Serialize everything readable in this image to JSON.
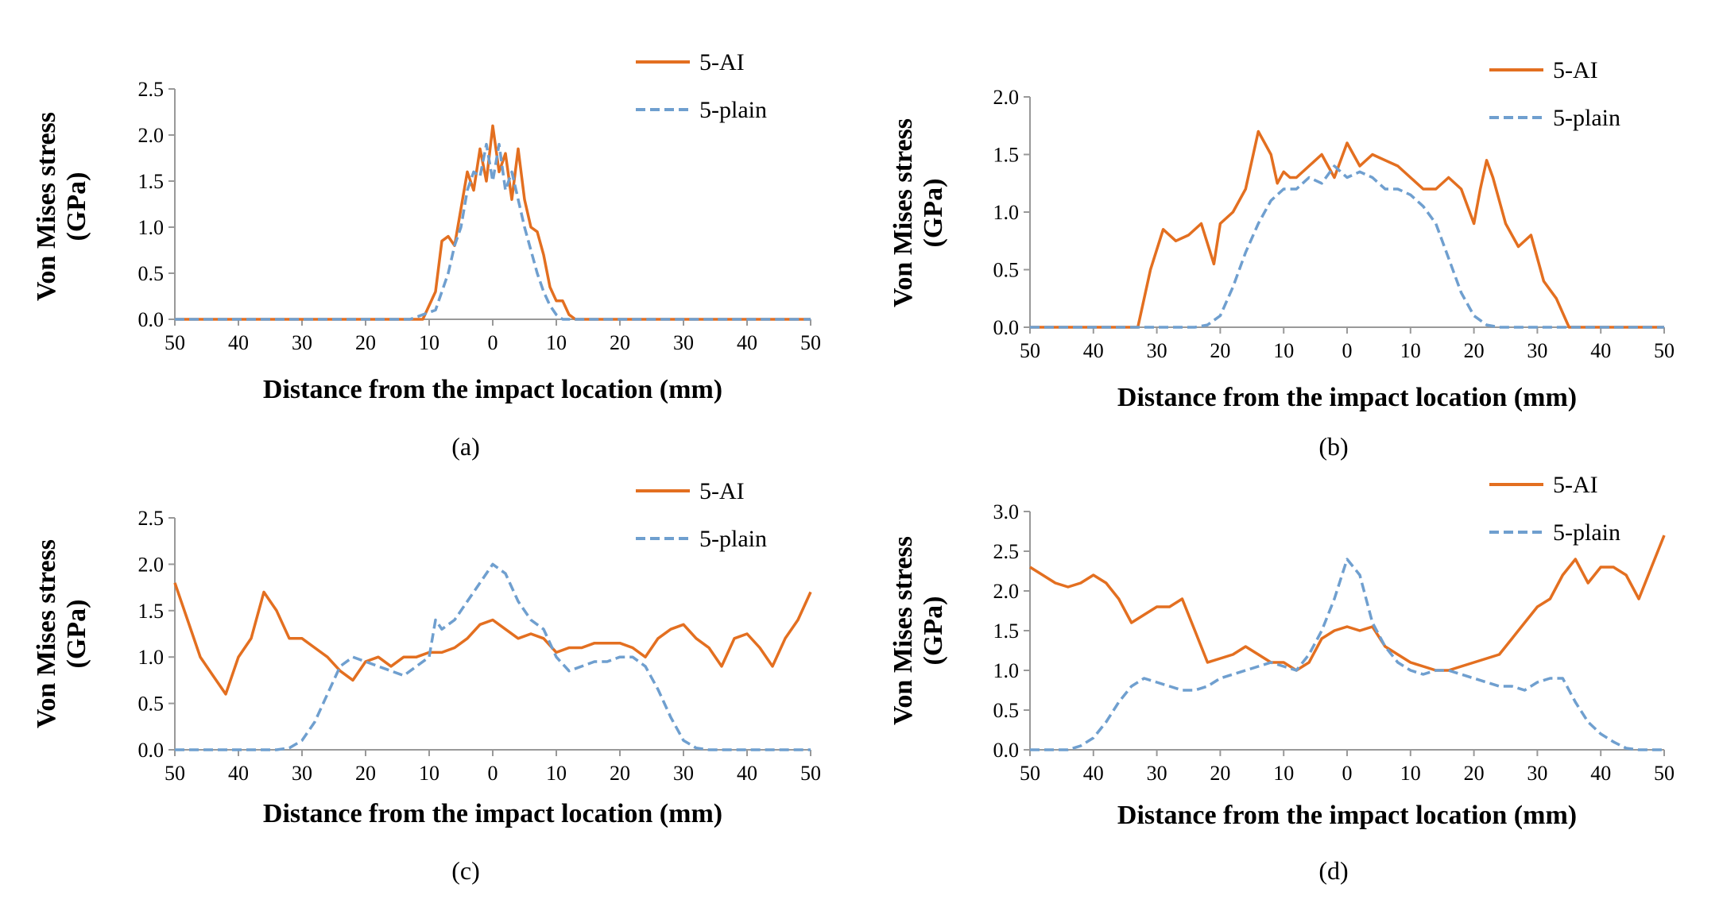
{
  "colors": {
    "ai": "#e36f20",
    "plain": "#6f9fcf",
    "axis": "#999999"
  },
  "chart_data": [
    {
      "type": "line",
      "panel": "(a)",
      "title": "",
      "xlabel": "Distance from the impact location (mm)",
      "ylabel_line1": "Von Mises stress",
      "ylabel_line2": "(GPa)",
      "ylim": [
        0,
        2.5
      ],
      "xlim": [
        -50,
        50
      ],
      "y_ticks": [
        "0.0",
        "0.5",
        "1.0",
        "1.5",
        "2.0",
        "2.5"
      ],
      "x_ticks": [
        "50",
        "40",
        "30",
        "20",
        "10",
        "0",
        "10",
        "20",
        "30",
        "40",
        "50"
      ],
      "legend": {
        "position": "top-right",
        "entries": [
          "5-AI",
          "5-plain"
        ]
      },
      "series": [
        {
          "name": "5-AI",
          "style": "solid",
          "x": [
            -50,
            -11,
            -9,
            -8,
            -7,
            -6,
            -5,
            -4,
            -3,
            -2,
            -1,
            0,
            1,
            2,
            3,
            4,
            5,
            6,
            7,
            8,
            9,
            10,
            11,
            12,
            13,
            50
          ],
          "y": [
            0,
            0,
            0.3,
            0.85,
            0.9,
            0.8,
            1.2,
            1.6,
            1.4,
            1.85,
            1.5,
            2.1,
            1.6,
            1.8,
            1.3,
            1.85,
            1.3,
            1.0,
            0.95,
            0.7,
            0.35,
            0.2,
            0.2,
            0.05,
            0,
            0
          ]
        },
        {
          "name": "5-plain",
          "style": "dashed",
          "x": [
            -50,
            -13,
            -11,
            -9,
            -8,
            -7,
            -6,
            -5,
            -4,
            -3,
            -2,
            -1,
            0,
            1,
            2,
            3,
            4,
            5,
            6,
            7,
            8,
            9,
            10,
            11,
            50
          ],
          "y": [
            0,
            0,
            0.05,
            0.1,
            0.3,
            0.5,
            0.8,
            1.0,
            1.4,
            1.6,
            1.55,
            1.9,
            1.5,
            1.9,
            1.4,
            1.6,
            1.3,
            1.0,
            0.75,
            0.5,
            0.3,
            0.15,
            0.05,
            0,
            0
          ]
        }
      ]
    },
    {
      "type": "line",
      "panel": "(b)",
      "title": "",
      "xlabel": "Distance from the impact location (mm)",
      "ylabel_line1": "Von Mises stress",
      "ylabel_line2": "(GPa)",
      "ylim": [
        0,
        2.0
      ],
      "xlim": [
        -50,
        50
      ],
      "y_ticks": [
        "0.0",
        "0.5",
        "1.0",
        "1.5",
        "2.0"
      ],
      "x_ticks": [
        "50",
        "40",
        "30",
        "20",
        "10",
        "0",
        "10",
        "20",
        "30",
        "40",
        "50"
      ],
      "legend": {
        "position": "top-right",
        "entries": [
          "5-AI",
          "5-plain"
        ]
      },
      "series": [
        {
          "name": "5-AI",
          "style": "solid",
          "x": [
            -50,
            -33,
            -31,
            -29,
            -27,
            -25,
            -23,
            -21,
            -20,
            -18,
            -16,
            -14,
            -13,
            -12,
            -11,
            -10,
            -9,
            -8,
            -6,
            -4,
            -2,
            0,
            2,
            4,
            6,
            8,
            10,
            12,
            14,
            16,
            18,
            20,
            21,
            22,
            23,
            25,
            27,
            29,
            31,
            33,
            35,
            50
          ],
          "y": [
            0,
            0,
            0.5,
            0.85,
            0.75,
            0.8,
            0.9,
            0.55,
            0.9,
            1.0,
            1.2,
            1.7,
            1.6,
            1.5,
            1.25,
            1.35,
            1.3,
            1.3,
            1.4,
            1.5,
            1.3,
            1.6,
            1.4,
            1.5,
            1.45,
            1.4,
            1.3,
            1.2,
            1.2,
            1.3,
            1.2,
            0.9,
            1.2,
            1.45,
            1.3,
            0.9,
            0.7,
            0.8,
            0.4,
            0.25,
            0,
            0
          ]
        },
        {
          "name": "5-plain",
          "style": "dashed",
          "x": [
            -50,
            -24,
            -22,
            -20,
            -18,
            -16,
            -14,
            -12,
            -10,
            -8,
            -6,
            -4,
            -2,
            0,
            2,
            4,
            6,
            8,
            10,
            12,
            14,
            16,
            18,
            20,
            22,
            24,
            50
          ],
          "y": [
            0,
            0,
            0.02,
            0.1,
            0.35,
            0.65,
            0.9,
            1.1,
            1.2,
            1.2,
            1.3,
            1.25,
            1.4,
            1.3,
            1.35,
            1.3,
            1.2,
            1.2,
            1.15,
            1.05,
            0.9,
            0.6,
            0.3,
            0.1,
            0.02,
            0,
            0
          ]
        }
      ]
    },
    {
      "type": "line",
      "panel": "(c)",
      "title": "",
      "xlabel": "Distance from the impact location (mm)",
      "ylabel_line1": "Von Mises stress",
      "ylabel_line2": "(GPa)",
      "ylim": [
        0,
        2.5
      ],
      "xlim": [
        -50,
        50
      ],
      "y_ticks": [
        "0.0",
        "0.5",
        "1.0",
        "1.5",
        "2.0",
        "2.5"
      ],
      "x_ticks": [
        "50",
        "40",
        "30",
        "20",
        "10",
        "0",
        "10",
        "20",
        "30",
        "40",
        "50"
      ],
      "legend": {
        "position": "top-right",
        "entries": [
          "5-AI",
          "5-plain"
        ]
      },
      "series": [
        {
          "name": "5-AI",
          "style": "solid",
          "x": [
            -50,
            -48,
            -46,
            -44,
            -42,
            -40,
            -38,
            -36,
            -34,
            -32,
            -30,
            -28,
            -26,
            -24,
            -22,
            -20,
            -18,
            -16,
            -14,
            -12,
            -10,
            -8,
            -6,
            -4,
            -2,
            0,
            2,
            4,
            6,
            8,
            10,
            12,
            14,
            16,
            18,
            20,
            22,
            24,
            26,
            28,
            30,
            32,
            34,
            36,
            38,
            40,
            42,
            44,
            46,
            48,
            50
          ],
          "y": [
            1.8,
            1.4,
            1.0,
            0.8,
            0.6,
            1.0,
            1.2,
            1.7,
            1.5,
            1.2,
            1.2,
            1.1,
            1.0,
            0.85,
            0.75,
            0.95,
            1.0,
            0.9,
            1.0,
            1.0,
            1.05,
            1.05,
            1.1,
            1.2,
            1.35,
            1.4,
            1.3,
            1.2,
            1.25,
            1.2,
            1.05,
            1.1,
            1.1,
            1.15,
            1.15,
            1.15,
            1.1,
            1.0,
            1.2,
            1.3,
            1.35,
            1.2,
            1.1,
            0.9,
            1.2,
            1.25,
            1.1,
            0.9,
            1.2,
            1.4,
            1.7
          ]
        },
        {
          "name": "5-plain",
          "style": "dashed",
          "x": [
            -50,
            -34,
            -32,
            -30,
            -28,
            -26,
            -24,
            -22,
            -20,
            -18,
            -16,
            -14,
            -12,
            -10,
            -9,
            -8,
            -6,
            -4,
            -2,
            0,
            2,
            4,
            6,
            8,
            10,
            12,
            14,
            16,
            18,
            20,
            22,
            24,
            26,
            28,
            30,
            32,
            34,
            50
          ],
          "y": [
            0,
            0,
            0.02,
            0.1,
            0.3,
            0.6,
            0.9,
            1.0,
            0.95,
            0.9,
            0.85,
            0.8,
            0.9,
            1.0,
            1.4,
            1.3,
            1.4,
            1.6,
            1.8,
            2.0,
            1.9,
            1.6,
            1.4,
            1.3,
            1.0,
            0.85,
            0.9,
            0.95,
            0.95,
            1.0,
            1.0,
            0.9,
            0.65,
            0.35,
            0.1,
            0.02,
            0,
            0
          ]
        }
      ]
    },
    {
      "type": "line",
      "panel": "(d)",
      "title": "",
      "xlabel": "Distance from the impact location (mm)",
      "ylabel_line1": "Von Mises stress",
      "ylabel_line2": "(GPa)",
      "ylim": [
        0,
        3.0
      ],
      "xlim": [
        -50,
        50
      ],
      "y_ticks": [
        "0.0",
        "0.5",
        "1.0",
        "1.5",
        "2.0",
        "2.5",
        "3.0"
      ],
      "x_ticks": [
        "50",
        "40",
        "30",
        "20",
        "10",
        "0",
        "10",
        "20",
        "30",
        "40",
        "50"
      ],
      "legend": {
        "position": "top-right",
        "entries": [
          "5-AI",
          "5-plain"
        ]
      },
      "series": [
        {
          "name": "5-AI",
          "style": "solid",
          "x": [
            -50,
            -48,
            -46,
            -44,
            -42,
            -40,
            -38,
            -36,
            -34,
            -32,
            -30,
            -28,
            -26,
            -24,
            -22,
            -20,
            -18,
            -16,
            -14,
            -12,
            -10,
            -8,
            -6,
            -4,
            -2,
            0,
            2,
            4,
            6,
            8,
            10,
            12,
            14,
            16,
            18,
            20,
            22,
            24,
            26,
            28,
            30,
            32,
            34,
            36,
            38,
            40,
            42,
            44,
            46,
            48,
            50
          ],
          "y": [
            2.3,
            2.2,
            2.1,
            2.05,
            2.1,
            2.2,
            2.1,
            1.9,
            1.6,
            1.7,
            1.8,
            1.8,
            1.9,
            1.5,
            1.1,
            1.15,
            1.2,
            1.3,
            1.2,
            1.1,
            1.1,
            1.0,
            1.1,
            1.4,
            1.5,
            1.55,
            1.5,
            1.55,
            1.3,
            1.2,
            1.1,
            1.05,
            1.0,
            1.0,
            1.05,
            1.1,
            1.15,
            1.2,
            1.4,
            1.6,
            1.8,
            1.9,
            2.2,
            2.4,
            2.1,
            2.3,
            2.3,
            2.2,
            1.9,
            2.3,
            2.7
          ]
        },
        {
          "name": "5-plain",
          "style": "dashed",
          "x": [
            -50,
            -44,
            -42,
            -40,
            -38,
            -36,
            -34,
            -32,
            -30,
            -28,
            -26,
            -24,
            -22,
            -20,
            -18,
            -16,
            -14,
            -12,
            -10,
            -8,
            -6,
            -4,
            -2,
            0,
            2,
            4,
            6,
            8,
            10,
            12,
            14,
            16,
            18,
            20,
            22,
            24,
            26,
            28,
            30,
            32,
            34,
            36,
            38,
            40,
            42,
            44,
            46,
            50
          ],
          "y": [
            0,
            0,
            0.05,
            0.15,
            0.35,
            0.6,
            0.8,
            0.9,
            0.85,
            0.8,
            0.75,
            0.75,
            0.8,
            0.9,
            0.95,
            1.0,
            1.05,
            1.1,
            1.05,
            1.0,
            1.2,
            1.5,
            1.9,
            2.4,
            2.2,
            1.6,
            1.3,
            1.1,
            1.0,
            0.95,
            1.0,
            1.0,
            0.95,
            0.9,
            0.85,
            0.8,
            0.8,
            0.75,
            0.85,
            0.9,
            0.9,
            0.6,
            0.35,
            0.2,
            0.1,
            0.02,
            0,
            0
          ]
        }
      ]
    }
  ]
}
